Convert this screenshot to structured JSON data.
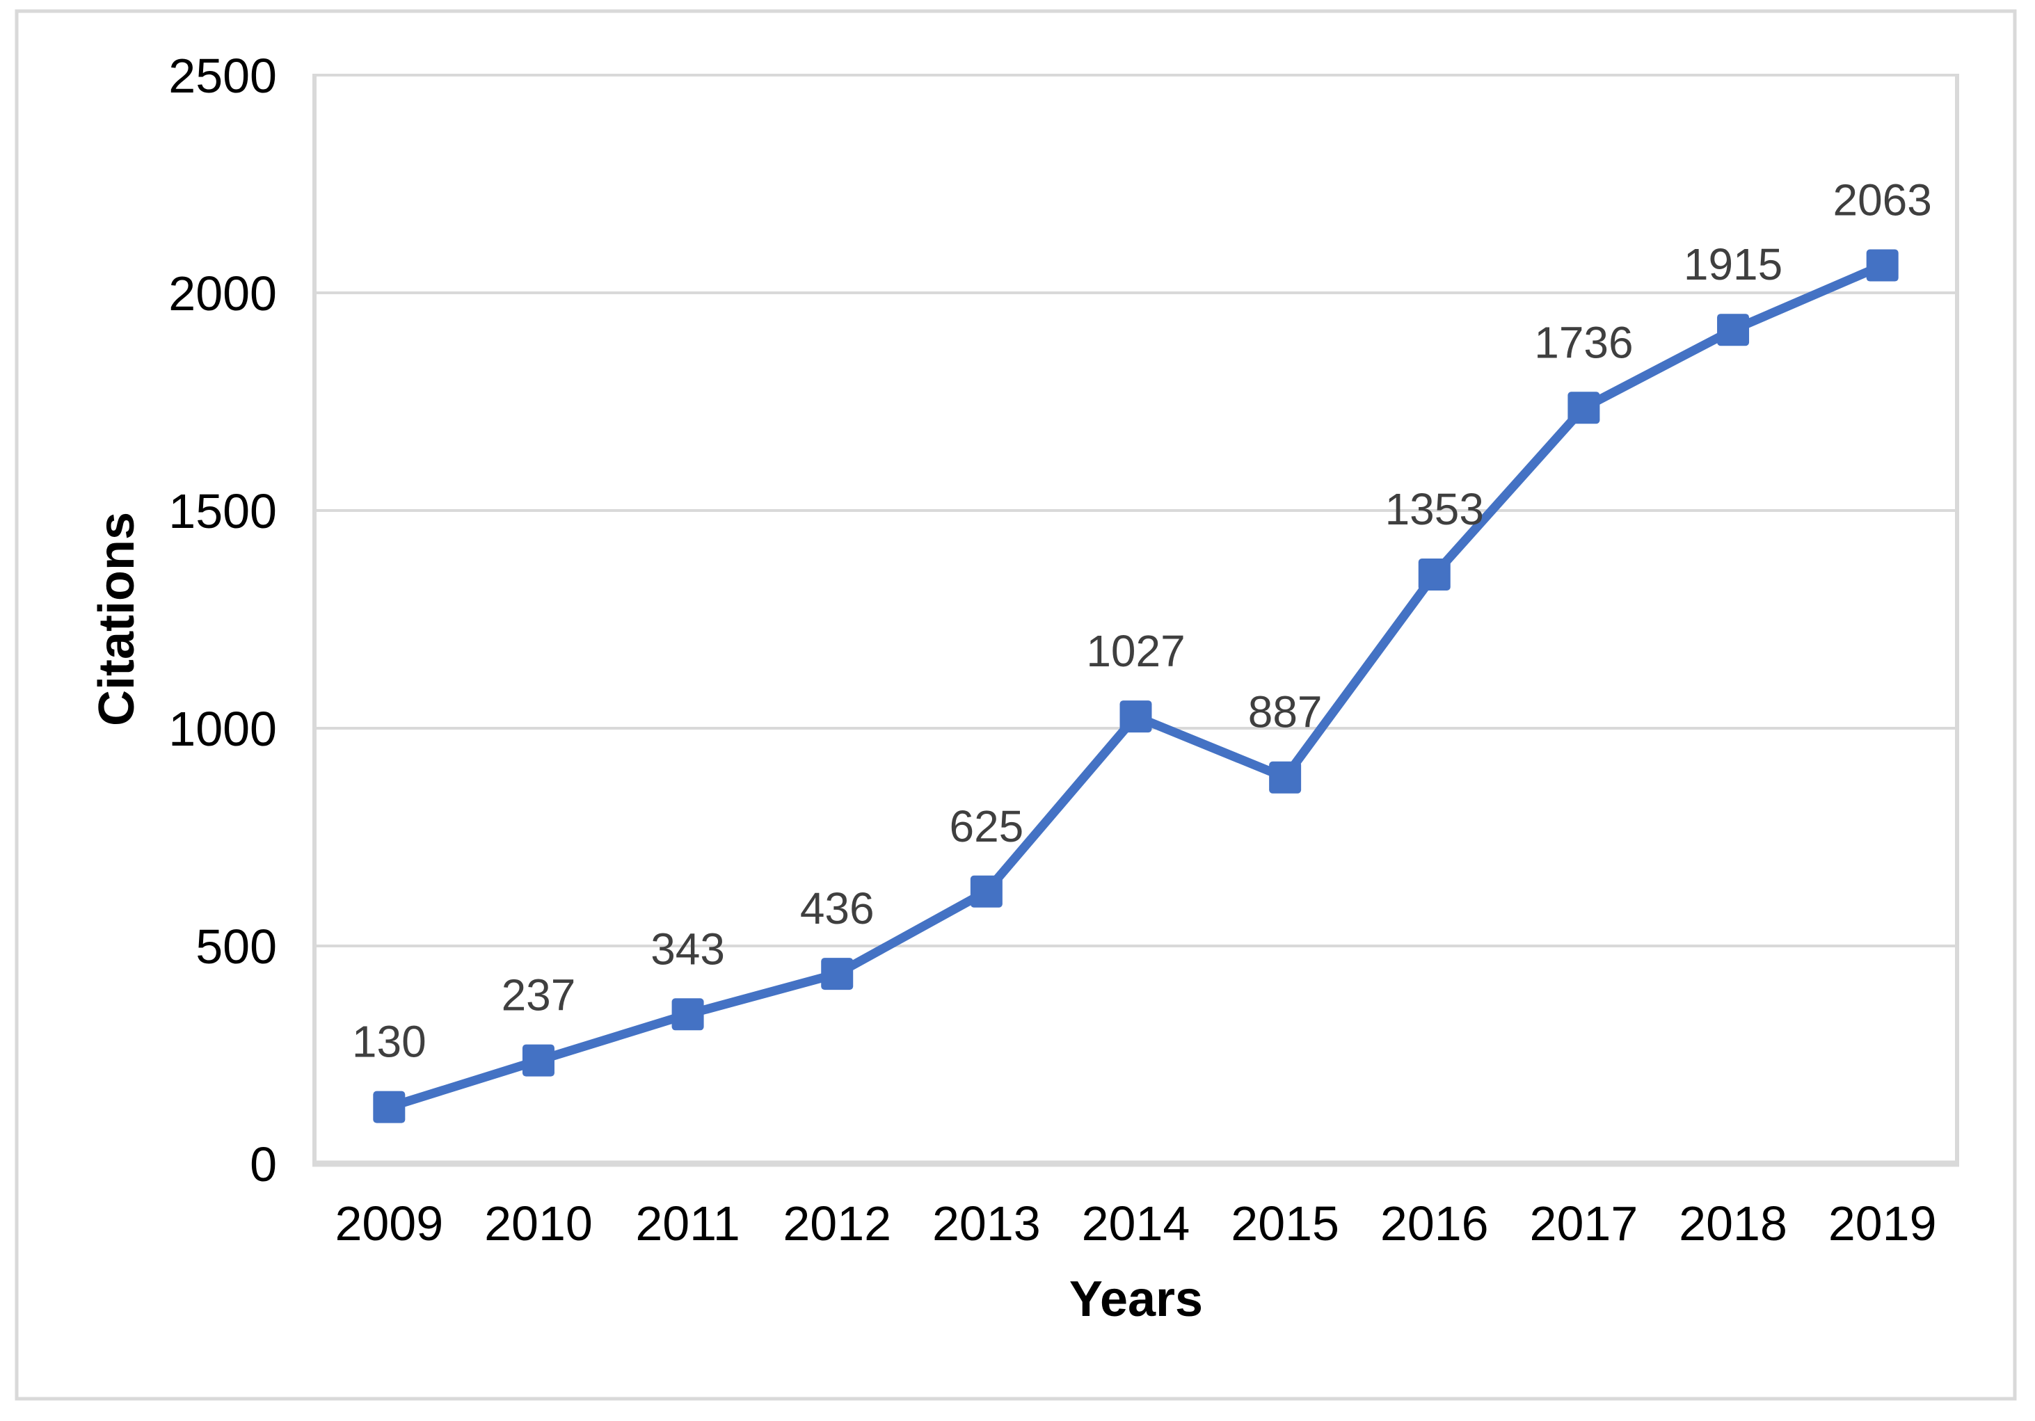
{
  "figure": {
    "background_color": "#FFFFFF",
    "border_color": "#D9D9D9"
  },
  "y_axis": {
    "title": "Citations",
    "tick_labels": [
      "0",
      "500",
      "1000",
      "1500",
      "2000",
      "2500"
    ]
  },
  "x_axis": {
    "title": "Years",
    "tick_labels": [
      "2009",
      "2010",
      "2011",
      "2012",
      "2013",
      "2014",
      "2015",
      "2016",
      "2017",
      "2018",
      "2019"
    ]
  },
  "chart_data": {
    "type": "line",
    "categories": [
      "2009",
      "2010",
      "2011",
      "2012",
      "2013",
      "2014",
      "2015",
      "2016",
      "2017",
      "2018",
      "2019"
    ],
    "series": [
      {
        "name": "Citations",
        "values": [
          130,
          237,
          343,
          436,
          625,
          1027,
          887,
          1353,
          1736,
          1915,
          2063
        ]
      }
    ],
    "data_labels": [
      130,
      237,
      343,
      436,
      625,
      1027,
      887,
      1353,
      1736,
      1915,
      2063
    ],
    "title": "",
    "xlabel": "Years",
    "ylabel": "Citations",
    "ylim": [
      0,
      2500
    ],
    "ytick_step": 500,
    "grid": "horizontal",
    "legend": "none",
    "line_color": "#4472C4",
    "marker_shape": "square",
    "marker_color": "#4472C4",
    "data_label_color": "#3F3F3F",
    "tick_label_color": "#000000",
    "gridline_color": "#D9D9D9",
    "axis_line_color": "#D9D9D9"
  }
}
